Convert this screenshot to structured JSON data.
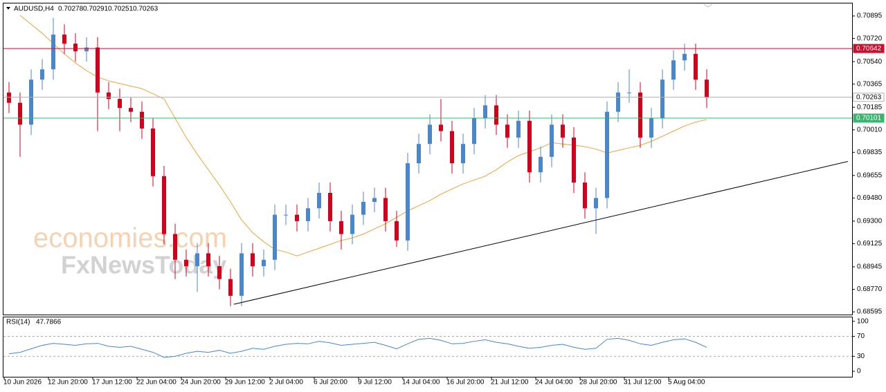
{
  "header": {
    "symbol": "AUDUSD,H4",
    "open": 0.70278,
    "high": 0.70291,
    "low": 0.70251,
    "close": 0.70263
  },
  "watermark": [
    "economies.com",
    "FxNewsToday"
  ],
  "chart_data": [
    {
      "type": "candlestick",
      "categories": [
        "10 Jun 2026",
        null,
        null,
        null,
        "12 Jun 20:00",
        null,
        null,
        null,
        "17 Jun 12:00",
        null,
        null,
        null,
        "22 Jun 04:00",
        null,
        null,
        null,
        "24 Jun 20:00",
        null,
        null,
        null,
        "29 Jun 12:00",
        null,
        null,
        null,
        "2 Jul 04:00",
        null,
        null,
        null,
        "6 Jul 20:00",
        null,
        null,
        null,
        "9 Jul 12:00",
        null,
        null,
        null,
        "14 Jul 04:00",
        null,
        null,
        null,
        "16 Jul 20:00",
        null,
        null,
        null,
        "21 Jul 12:00",
        null,
        null,
        null,
        "24 Jul 04:00",
        null,
        null,
        null,
        "28 Jul 20:00",
        null,
        null,
        null,
        "31 Jul 12:00",
        null,
        null,
        null,
        "5 Aug 04:00",
        null,
        null,
        null
      ],
      "open": [
        0.703,
        0.7022,
        0.7005,
        0.704,
        0.7048,
        0.7075,
        0.7068,
        0.7062,
        0.7065,
        0.703,
        0.7025,
        0.7018,
        0.7015,
        0.7002,
        0.6965,
        0.692,
        0.69,
        0.6895,
        0.6905,
        0.6895,
        0.6885,
        0.6872,
        0.6905,
        0.6895,
        0.69,
        0.6935,
        0.6935,
        0.693,
        0.694,
        0.6952,
        0.693,
        0.692,
        0.6935,
        0.6945,
        0.6948,
        0.693,
        0.6915,
        0.6975,
        0.699,
        0.7005,
        0.7,
        0.6975,
        0.699,
        0.701,
        0.702,
        0.7005,
        0.6995,
        0.7008,
        0.6968,
        0.698,
        0.7005,
        0.6995,
        0.696,
        0.694,
        0.6948,
        0.7015,
        0.703,
        0.703,
        0.6995,
        0.701,
        0.704,
        0.7055,
        0.706,
        0.704
      ],
      "high": [
        0.7038,
        0.703,
        0.7048,
        0.7056,
        0.7088,
        0.7083,
        0.7076,
        0.7073,
        0.7073,
        0.7038,
        0.7033,
        0.7026,
        0.7023,
        0.701,
        0.6973,
        0.6928,
        0.6908,
        0.6913,
        0.6913,
        0.6903,
        0.6893,
        0.6913,
        0.6913,
        0.6908,
        0.6943,
        0.6943,
        0.6943,
        0.6948,
        0.696,
        0.696,
        0.6938,
        0.6943,
        0.6953,
        0.6956,
        0.6956,
        0.6938,
        0.6983,
        0.6998,
        0.7013,
        0.7025,
        0.7008,
        0.6998,
        0.7018,
        0.7028,
        0.7028,
        0.7013,
        0.7016,
        0.7016,
        0.6988,
        0.7013,
        0.7013,
        0.7003,
        0.6968,
        0.6956,
        0.7023,
        0.7038,
        0.7048,
        0.7038,
        0.7018,
        0.7048,
        0.7063,
        0.7068,
        0.7068,
        0.7048
      ],
      "low": [
        0.7014,
        0.698,
        0.6997,
        0.7032,
        0.704,
        0.706,
        0.7054,
        0.7054,
        0.7,
        0.7017,
        0.7,
        0.7007,
        0.6994,
        0.6957,
        0.6912,
        0.6885,
        0.6887,
        0.6875,
        0.6887,
        0.6877,
        0.6864,
        0.6864,
        0.6887,
        0.6887,
        0.6892,
        0.6927,
        0.6922,
        0.6922,
        0.6932,
        0.6922,
        0.6908,
        0.6912,
        0.6927,
        0.6937,
        0.6922,
        0.691,
        0.6907,
        0.6967,
        0.6982,
        0.6992,
        0.6967,
        0.6967,
        0.6982,
        0.7002,
        0.6997,
        0.6987,
        0.6987,
        0.696,
        0.696,
        0.6972,
        0.6987,
        0.6952,
        0.6932,
        0.692,
        0.694,
        0.7007,
        0.7022,
        0.6987,
        0.6987,
        0.7002,
        0.7032,
        0.7047,
        0.7032,
        0.7018
      ],
      "close": [
        0.7022,
        0.7005,
        0.704,
        0.7048,
        0.7075,
        0.7068,
        0.7062,
        0.7065,
        0.703,
        0.7025,
        0.7018,
        0.7015,
        0.7002,
        0.6965,
        0.692,
        0.69,
        0.6895,
        0.6905,
        0.6895,
        0.6885,
        0.6872,
        0.6905,
        0.6895,
        0.69,
        0.6935,
        0.6935,
        0.693,
        0.694,
        0.6952,
        0.693,
        0.692,
        0.6935,
        0.6945,
        0.6948,
        0.693,
        0.6915,
        0.6975,
        0.699,
        0.7005,
        0.7,
        0.6975,
        0.699,
        0.701,
        0.702,
        0.7005,
        0.6995,
        0.7008,
        0.6968,
        0.698,
        0.7005,
        0.6995,
        0.696,
        0.694,
        0.6948,
        0.7015,
        0.703,
        0.703,
        0.6995,
        0.701,
        0.704,
        0.7055,
        0.706,
        0.704,
        0.7026
      ],
      "up_color": "#4a86c8",
      "down_color": "#d0021b",
      "moving_average": {
        "color": "#e8a33d",
        "values": [
          null,
          0.709,
          0.7083,
          0.7076,
          0.7068,
          0.706,
          0.7053,
          0.7047,
          0.7042,
          0.7039,
          0.7037,
          0.7035,
          0.7033,
          0.7029,
          0.7025,
          0.701,
          0.6995,
          0.6982,
          0.697,
          0.6958,
          0.6945,
          0.6931,
          0.6921,
          0.6914,
          0.6908,
          0.6906,
          0.6903,
          0.6906,
          0.6909,
          0.6912,
          0.6915,
          0.6917,
          0.692,
          0.6924,
          0.6928,
          0.6933,
          0.6938,
          0.6942,
          0.6946,
          0.6951,
          0.6955,
          0.6959,
          0.6962,
          0.6965,
          0.697,
          0.6976,
          0.6981,
          0.6984,
          0.6987,
          0.6991,
          0.699,
          0.6989,
          0.6988,
          0.6986,
          0.6983,
          0.6985,
          0.6987,
          0.6989,
          0.6992,
          0.6996,
          0.7,
          0.7004,
          0.7007,
          0.7009
        ]
      },
      "levels": [
        {
          "value": 0.70642,
          "color": "#c8102e",
          "text_color": "#ffffff"
        },
        {
          "value": 0.70263,
          "color": "#ffffff",
          "line_color": "#b0b0b0",
          "text_color": "#000000"
        },
        {
          "value": 0.70101,
          "color": "#3cb371",
          "text_color": "#ffffff"
        }
      ],
      "trendline": {
        "x": [
          20.3,
          75.75
        ],
        "y": [
          0.68654,
          0.69764
        ],
        "color": "#000000"
      },
      "ylim": [
        0.68574,
        0.70992
      ],
      "yticks": [
        0.70895,
        {
          "value": 0.7072,
          "label": "0.70720"
        },
        {
          "value": 0.7054,
          "label": "0.70540"
        },
        0.70365,
        0.70185,
        {
          "value": 0.7001,
          "label": "0.70010"
        },
        0.69835,
        0.69655,
        {
          "value": 0.6948,
          "label": "0.69480"
        },
        {
          "value": 0.693,
          "label": "0.69300"
        },
        0.69125,
        0.68945,
        {
          "value": 0.6877,
          "label": "0.68770"
        },
        0.68595
      ]
    },
    {
      "type": "line",
      "title": "RSI(14)",
      "current": 47.7866,
      "color": "#4a86c8",
      "values": [
        35,
        38,
        45,
        52,
        56,
        54,
        52,
        55,
        56,
        50,
        48,
        50,
        44,
        38,
        28,
        30,
        36,
        40,
        38,
        42,
        36,
        40,
        46,
        44,
        50,
        54,
        56,
        55,
        60,
        57,
        52,
        54,
        56,
        58,
        52,
        45,
        55,
        64,
        66,
        62,
        55,
        56,
        60,
        63,
        58,
        55,
        50,
        46,
        48,
        52,
        54,
        48,
        44,
        46,
        64,
        66,
        62,
        55,
        52,
        58,
        63,
        65,
        58,
        48
      ],
      "ylim": [
        -11,
        108
      ],
      "yticks": [
        100,
        70,
        30,
        0
      ]
    }
  ]
}
